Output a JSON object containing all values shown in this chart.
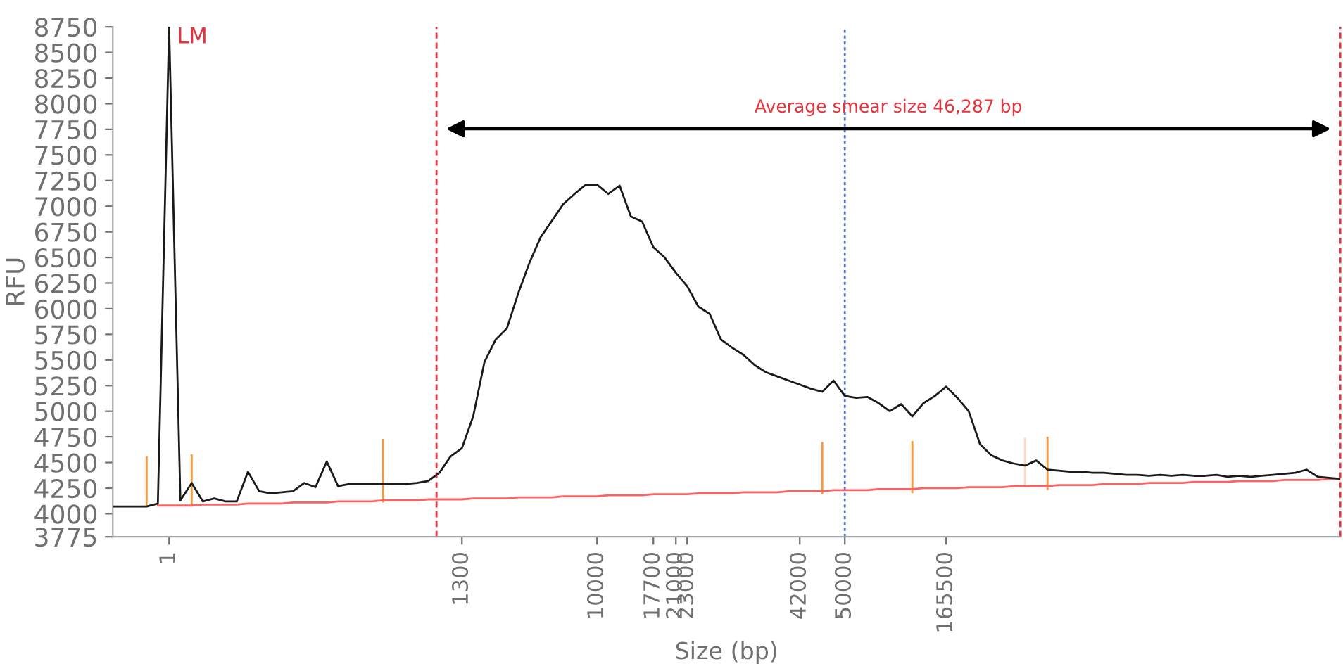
{
  "chart_data": {
    "type": "line",
    "xlabel": "Size (bp)",
    "ylabel": "RFU",
    "categories": [
      null,
      null,
      null,
      null,
      null,
      "1",
      null,
      null,
      null,
      null,
      null,
      null,
      null,
      null,
      null,
      null,
      null,
      null,
      null,
      null,
      null,
      null,
      null,
      null,
      null,
      null,
      null,
      null,
      null,
      null,
      null,
      "1300",
      null,
      null,
      null,
      null,
      null,
      null,
      null,
      null,
      null,
      null,
      null,
      "10000",
      null,
      null,
      null,
      null,
      "17700",
      null,
      "21000",
      "23000",
      null,
      null,
      null,
      null,
      null,
      null,
      null,
      null,
      null,
      "42000",
      null,
      null,
      null,
      "50000",
      null,
      null,
      null,
      null,
      null,
      null,
      null,
      null,
      "165500",
      null,
      null,
      null,
      null,
      null,
      null,
      null,
      null,
      null,
      null,
      null,
      null,
      null,
      null,
      null,
      null,
      null,
      null,
      null,
      null,
      null,
      null,
      null,
      null,
      null,
      null,
      null,
      null,
      null,
      null,
      null,
      null,
      null,
      null,
      null
    ],
    "ylim": [
      3775,
      8750
    ],
    "yticks": [
      3775,
      4000,
      4250,
      4500,
      4750,
      5000,
      5250,
      5500,
      5750,
      6000,
      6250,
      6500,
      6750,
      7000,
      7250,
      7500,
      7750,
      8000,
      8250,
      8500,
      8750
    ],
    "grid": false,
    "legend": false,
    "series": [
      {
        "type": "line",
        "color": "#ff6060",
        "values": [
          null,
          null,
          null,
          null,
          4080,
          4080,
          4080,
          4080,
          4090,
          4090,
          4090,
          4090,
          4100,
          4100,
          4100,
          4100,
          4110,
          4110,
          4110,
          4110,
          4120,
          4120,
          4120,
          4120,
          4130,
          4130,
          4130,
          4130,
          4140,
          4140,
          4140,
          4140,
          4150,
          4150,
          4150,
          4150,
          4160,
          4160,
          4160,
          4160,
          4170,
          4170,
          4170,
          4170,
          4180,
          4180,
          4180,
          4180,
          4190,
          4190,
          4190,
          4190,
          4200,
          4200,
          4200,
          4200,
          4210,
          4210,
          4210,
          4210,
          4220,
          4220,
          4220,
          4220,
          4230,
          4230,
          4230,
          4230,
          4240,
          4240,
          4240,
          4240,
          4250,
          4250,
          4250,
          4250,
          4260,
          4260,
          4260,
          4260,
          4270,
          4270,
          4270,
          4270,
          4280,
          4280,
          4280,
          4280,
          4290,
          4290,
          4290,
          4290,
          4300,
          4300,
          4300,
          4300,
          4310,
          4310,
          4310,
          4310,
          4320,
          4320,
          4320,
          4320,
          4330,
          4330,
          4330,
          4330,
          4340,
          4340
        ]
      },
      {
        "type": "bar",
        "colors": [
          null,
          null,
          null,
          "#f59a3c",
          null,
          null,
          null,
          "#f59a3c",
          null,
          null,
          null,
          null,
          null,
          null,
          null,
          null,
          null,
          null,
          null,
          null,
          null,
          null,
          null,
          null,
          "#f59a3c",
          null,
          null,
          null,
          null,
          null,
          null,
          null,
          null,
          null,
          null,
          null,
          null,
          null,
          null,
          null,
          null,
          null,
          null,
          null,
          null,
          null,
          null,
          null,
          null,
          null,
          null,
          null,
          null,
          null,
          null,
          null,
          null,
          null,
          null,
          null,
          null,
          null,
          null,
          "#f59a3c",
          null,
          null,
          null,
          null,
          null,
          null,
          null,
          "#f59a3c",
          null,
          null,
          null,
          null,
          null,
          null,
          null,
          null,
          null,
          "#ffd9c0",
          null,
          "#f59a3c",
          null,
          null,
          null,
          null,
          null,
          null,
          null,
          null,
          null,
          null,
          null,
          null,
          null,
          null,
          null,
          null,
          null,
          null,
          null,
          null,
          null,
          null,
          null,
          null,
          null,
          null
        ],
        "base": [
          null,
          null,
          null,
          4070,
          null,
          null,
          null,
          4070,
          null,
          null,
          null,
          null,
          null,
          null,
          null,
          null,
          null,
          null,
          null,
          null,
          null,
          null,
          null,
          null,
          4110,
          null,
          null,
          null,
          null,
          null,
          null,
          null,
          null,
          null,
          null,
          null,
          null,
          null,
          null,
          null,
          null,
          null,
          null,
          null,
          null,
          null,
          null,
          null,
          null,
          null,
          null,
          null,
          null,
          null,
          null,
          null,
          null,
          null,
          null,
          null,
          null,
          null,
          null,
          4190,
          null,
          null,
          null,
          null,
          null,
          null,
          null,
          4200,
          null,
          null,
          null,
          null,
          null,
          null,
          null,
          null,
          null,
          4260,
          null,
          4230,
          null,
          null,
          null,
          null,
          null,
          null,
          null,
          null,
          null,
          null,
          null,
          null,
          null,
          null,
          null,
          null,
          null,
          null,
          null,
          null,
          null,
          null,
          null,
          null,
          null,
          null
        ],
        "values": [
          null,
          null,
          null,
          490,
          null,
          null,
          null,
          510,
          null,
          null,
          null,
          null,
          null,
          null,
          null,
          null,
          null,
          null,
          null,
          null,
          null,
          null,
          null,
          null,
          620,
          null,
          null,
          null,
          null,
          null,
          null,
          null,
          null,
          null,
          null,
          null,
          null,
          null,
          null,
          null,
          null,
          null,
          null,
          null,
          null,
          null,
          null,
          null,
          null,
          null,
          null,
          null,
          null,
          null,
          null,
          null,
          null,
          null,
          null,
          null,
          null,
          null,
          null,
          510,
          null,
          null,
          null,
          null,
          null,
          null,
          null,
          510,
          null,
          null,
          null,
          null,
          null,
          null,
          null,
          null,
          null,
          480,
          null,
          520,
          null,
          null,
          null,
          null,
          null,
          null,
          null,
          null,
          null,
          null,
          null,
          null,
          null,
          null,
          null,
          null,
          null,
          null,
          null,
          null,
          null,
          null,
          null,
          null,
          null,
          null
        ]
      },
      {
        "color": "#1a1a1a",
        "values": [
          4070,
          4070,
          4070,
          4070,
          4100,
          8750,
          4130,
          4300,
          4120,
          4150,
          4120,
          4120,
          4410,
          4220,
          4200,
          4210,
          4220,
          4300,
          4260,
          4510,
          4270,
          4290,
          4290,
          4290,
          4290,
          4290,
          4290,
          4300,
          4320,
          4400,
          4560,
          4640,
          4950,
          5480,
          5700,
          5810,
          6150,
          6450,
          6700,
          6860,
          7020,
          7120,
          7210,
          7210,
          7120,
          7200,
          6900,
          6850,
          6600,
          6500,
          6350,
          6220,
          6020,
          5950,
          5700,
          5620,
          5550,
          5450,
          5380,
          5340,
          5300,
          5260,
          5220,
          5190,
          5300,
          5150,
          5130,
          5140,
          5080,
          5000,
          5070,
          4950,
          5080,
          5150,
          5240,
          5130,
          5000,
          4680,
          4570,
          4520,
          4490,
          4470,
          4520,
          4430,
          4420,
          4410,
          4410,
          4400,
          4400,
          4390,
          4380,
          4380,
          4370,
          4380,
          4370,
          4380,
          4370,
          4370,
          4380,
          4360,
          4370,
          4360,
          4370,
          4380,
          4390,
          4400,
          4430,
          4360,
          4350,
          4340
        ]
      }
    ],
    "ref_lines": [
      {
        "axis": "x",
        "value": "50000",
        "color": "#4a72d0",
        "line_style": "dotted"
      }
    ],
    "annotations": [
      {
        "text": "LM",
        "x": "1",
        "y": 8750
      },
      "Average smear size 46,287 bp"
    ]
  }
}
